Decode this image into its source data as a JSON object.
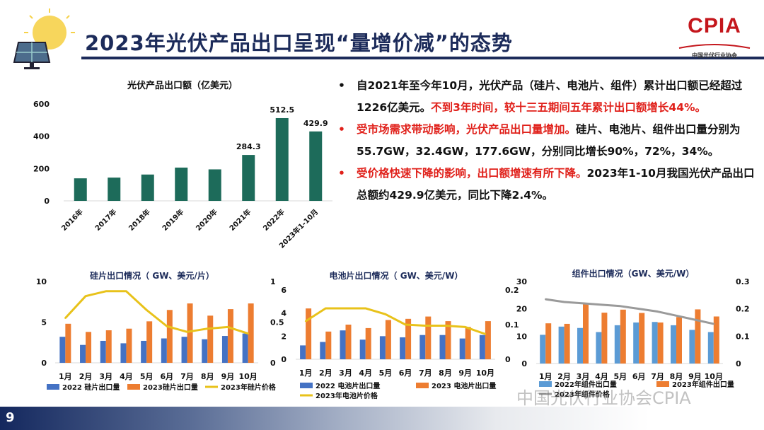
{
  "slide": {
    "title": "2023年光伏产品出口呈现“量增价减”的态势",
    "page_number": "9",
    "logo_text": "CPIA",
    "logo_subtext": "中国光伏行业协会",
    "watermark": "中国光伏行业协会CPIA"
  },
  "bullets": [
    {
      "parts": [
        {
          "text": "自2021年至今年10月，光伏产品（硅片、电池片、组件）累计出口额已经超过1226亿美元。",
          "red": false
        },
        {
          "text": "不到3年时间，较十三五期间五年累计出口额增长44%。",
          "red": true
        }
      ],
      "dot_red": false
    },
    {
      "parts": [
        {
          "text": "受市场需求带动影响，光伏产品出口量增加。",
          "red": true
        },
        {
          "text": "硅片、电池片、组件出口量分别为55.7GW，32.4GW，177.6GW，分别同比增长90%，72%，34%。",
          "red": false
        }
      ],
      "dot_red": true
    },
    {
      "parts": [
        {
          "text": "受价格快速下降的影响，出口额增速有所下降。",
          "red": true
        },
        {
          "text": "2023年1-10月我国光伏产品出口总额约429.9亿美元，同比下降2.4%。",
          "red": false
        }
      ],
      "dot_red": true
    }
  ],
  "colors": {
    "navy": "#1c2b5a",
    "teal": "#1d6b5a",
    "blue": "#4472c4",
    "blue_light": "#5b9bd5",
    "orange": "#ed7d31",
    "yellow": "#e8c21a",
    "gray": "#9a9a9a",
    "red": "#e0201a"
  },
  "chart_data": [
    {
      "type": "bar",
      "title": "光伏产品出口额（亿美元）",
      "categories": [
        "2016年",
        "2017年",
        "2018年",
        "2019年",
        "2020年",
        "2021年",
        "2022年",
        "2023年1-10月"
      ],
      "values": [
        139.5,
        144,
        163,
        206,
        195,
        284.3,
        512.5,
        429.9
      ],
      "data_labels": [
        "",
        "",
        "",
        "",
        "",
        "284.3",
        "512.5",
        "429.9"
      ],
      "ylim": [
        0,
        600
      ],
      "yticks": [
        0,
        200,
        400,
        600
      ],
      "xlabel": "",
      "ylabel": "",
      "grid": false
    },
    {
      "type": "bar+line",
      "title": "硅片出口情况（ GW、美元/片）",
      "categories": [
        "1月",
        "2月",
        "3月",
        "4月",
        "5月",
        "6月",
        "7月",
        "8月",
        "9月",
        "10月"
      ],
      "series": [
        {
          "name": "2022 硅片出口量",
          "kind": "bar",
          "axis": "left",
          "values": [
            3.2,
            2.2,
            2.7,
            2.4,
            2.7,
            3.0,
            3.2,
            2.9,
            3.3,
            3.6
          ]
        },
        {
          "name": "2023硅片出口量",
          "kind": "bar",
          "axis": "left",
          "values": [
            4.8,
            3.8,
            4.0,
            4.2,
            5.1,
            6.5,
            7.3,
            5.8,
            6.6,
            7.3
          ]
        },
        {
          "name": "2023年硅片价格",
          "kind": "line",
          "axis": "right",
          "values": [
            0.55,
            0.82,
            0.88,
            0.88,
            0.65,
            0.45,
            0.38,
            0.42,
            0.44,
            0.36
          ]
        }
      ],
      "ylim": [
        0,
        10
      ],
      "yticks": [
        0,
        5,
        10
      ],
      "y2lim": [
        0,
        1
      ],
      "y2ticks": [
        "0",
        "0.5",
        "1"
      ]
    },
    {
      "type": "bar+line",
      "title": "电池片出口情况（ GW、美元/W）",
      "categories": [
        "1月",
        "2月",
        "3月",
        "4月",
        "5月",
        "6月",
        "7月",
        "8月",
        "9月",
        "10月"
      ],
      "series": [
        {
          "name": "2022 电池片出口量",
          "kind": "bar",
          "axis": "left",
          "values": [
            1.2,
            1.5,
            2.5,
            1.7,
            2.0,
            1.9,
            2.1,
            2.1,
            1.8,
            2.1
          ]
        },
        {
          "name": "2023 电池片出口量",
          "kind": "bar",
          "axis": "left",
          "values": [
            4.4,
            2.4,
            3.0,
            2.7,
            3.4,
            3.5,
            3.7,
            3.3,
            2.8,
            3.3
          ]
        },
        {
          "name": "2023年电池片价格",
          "kind": "line",
          "axis": "right",
          "values": [
            0.11,
            0.147,
            0.147,
            0.147,
            0.13,
            0.1,
            0.097,
            0.097,
            0.093,
            0.073
          ]
        }
      ],
      "ylim": [
        0,
        6
      ],
      "yticks": [
        0,
        2,
        4,
        6
      ],
      "y2lim": [
        0,
        0.2
      ],
      "y2ticks": [
        "0",
        "0.1",
        "0.2"
      ]
    },
    {
      "type": "bar+line",
      "title": "组件出口情况（GW、美元/W）",
      "categories": [
        "1月",
        "2月",
        "3月",
        "4月",
        "5月",
        "6月",
        "7月",
        "8月",
        "9月",
        "10月"
      ],
      "series": [
        {
          "name": "2022年组件出口量",
          "kind": "bar",
          "axis": "left",
          "values": [
            10.5,
            13.5,
            13,
            11.5,
            14,
            15,
            15.2,
            14,
            12.3,
            11.5
          ]
        },
        {
          "name": "2023年组件出口量",
          "kind": "bar",
          "axis": "left",
          "values": [
            14.7,
            14.5,
            22,
            18.6,
            19.7,
            18.5,
            15,
            17,
            19.8,
            17.2
          ]
        },
        {
          "name": "2023年组件价格",
          "kind": "line",
          "axis": "right",
          "values": [
            0.235,
            0.225,
            0.22,
            0.215,
            0.21,
            0.2,
            0.19,
            0.175,
            0.16,
            0.145
          ]
        }
      ],
      "ylim": [
        0,
        30
      ],
      "yticks": [
        0,
        10,
        20,
        30
      ],
      "y2lim": [
        0,
        0.3
      ],
      "y2ticks": [
        "0",
        "0.1",
        "0.2",
        "0.3"
      ]
    }
  ]
}
